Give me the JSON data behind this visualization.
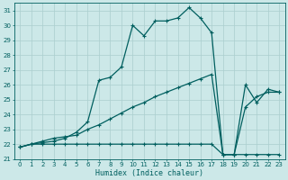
{
  "xlabel": "Humidex (Indice chaleur)",
  "background_color": "#cce8e8",
  "line_color": "#005f5f",
  "grid_color": "#aacece",
  "xlim": [
    -0.5,
    23.5
  ],
  "ylim": [
    21.0,
    31.5
  ],
  "xticks": [
    0,
    1,
    2,
    3,
    4,
    5,
    6,
    7,
    8,
    9,
    10,
    11,
    12,
    13,
    14,
    15,
    16,
    17,
    18,
    19,
    20,
    21,
    22,
    23
  ],
  "yticks": [
    21,
    22,
    23,
    24,
    25,
    26,
    27,
    28,
    29,
    30,
    31
  ],
  "curve1_x": [
    0,
    1,
    2,
    3,
    4,
    5,
    6,
    7,
    8,
    9,
    10,
    11,
    12,
    13,
    14,
    15,
    16,
    17,
    18,
    19,
    20,
    21,
    22,
    23
  ],
  "curve1_y": [
    21.8,
    22.0,
    22.0,
    22.0,
    22.0,
    22.0,
    22.0,
    22.0,
    22.0,
    22.0,
    22.0,
    22.0,
    22.0,
    22.0,
    22.0,
    22.0,
    22.0,
    22.0,
    21.3,
    21.3,
    21.3,
    21.3,
    21.3,
    21.3
  ],
  "curve2_x": [
    0,
    1,
    2,
    3,
    4,
    5,
    6,
    7,
    8,
    9,
    10,
    11,
    12,
    13,
    14,
    15,
    16,
    17,
    18,
    19,
    20,
    21,
    22,
    23
  ],
  "curve2_y": [
    21.8,
    22.0,
    22.2,
    22.4,
    22.5,
    22.6,
    23.0,
    23.3,
    23.7,
    24.1,
    24.5,
    24.8,
    25.2,
    25.5,
    25.8,
    26.1,
    26.4,
    26.7,
    21.3,
    21.3,
    24.5,
    25.2,
    25.5,
    25.5
  ],
  "curve3_x": [
    0,
    1,
    2,
    3,
    4,
    5,
    6,
    7,
    8,
    9,
    10,
    11,
    12,
    13,
    14,
    15,
    16,
    17,
    18,
    19,
    20,
    21,
    22,
    23
  ],
  "curve3_y": [
    21.8,
    22.0,
    22.1,
    22.2,
    22.4,
    22.8,
    23.5,
    26.3,
    26.5,
    27.2,
    30.0,
    29.3,
    30.3,
    30.3,
    30.5,
    31.2,
    30.5,
    29.5,
    21.3,
    21.3,
    26.0,
    24.8,
    25.7,
    25.5
  ]
}
